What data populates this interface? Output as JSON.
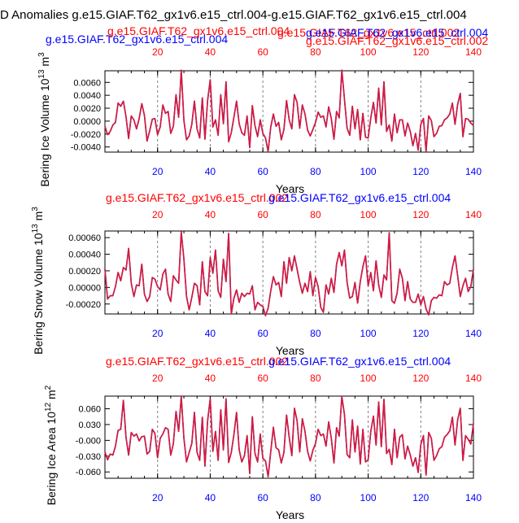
{
  "page": {
    "title": "D Anomalies g.e15.GIAF.T62_gx1v6.e15_ctrl.004-g.e15.GIAF.T62_gx1v6.e15_ctrl.004"
  },
  "colors": {
    "blue": "#0000ff",
    "red": "#ff0000",
    "line": "#d8183c",
    "axis": "#000000",
    "grid": "#808080"
  },
  "chart_data": [
    {
      "type": "line",
      "ylabel_main": "Bering Ice Volume 10",
      "ylabel_exp": "13",
      "ylabel_unit": "m",
      "ylabel_unit_exp": "3",
      "xlabel": "Years",
      "top_title_blue": "g.e15.GIAF.T62_gx1v6.e15_ctrl.004",
      "top_title_red": "g.e15.GIAF.T62_gx1v6.e15_ctrl.004",
      "top_title_red2": "g.e15.GIAF.T62_gx1v6.e15_ctrl.002",
      "top_title_blue2": "g.e15.GIAF.T62_gx1v6.e15_ctrl.004",
      "top_title_red3": "g.e15.GIAF.T62_gx1v6.e15_ctrl.002",
      "xlim": [
        0,
        140
      ],
      "ylim": [
        -0.0048,
        0.0078
      ],
      "yticks": [
        "0.0060",
        "0.0040",
        "0.0020",
        "0.0000",
        "-0.0020",
        "-0.0040"
      ],
      "ytick_values": [
        0.006,
        0.004,
        0.002,
        0.0,
        -0.002,
        -0.004
      ],
      "xticks": [
        "20",
        "40",
        "60",
        "80",
        "100",
        "120",
        "140"
      ],
      "xtick_values": [
        20,
        40,
        60,
        80,
        100,
        120,
        140
      ],
      "series": [
        {
          "name": "anomaly",
          "values": [
            -0.0008,
            -0.0021,
            -0.0016,
            -0.0006,
            -0.0002,
            0.0028,
            0.0023,
            0.0031,
            0.0007,
            -0.0027,
            0.0008,
            0.0002,
            -0.0012,
            0.0004,
            0.0027,
            0.0009,
            -0.0031,
            -0.0015,
            0.0003,
            0.0004,
            -0.0021,
            -0.0009,
            0.0025,
            0.0012,
            0.0015,
            -0.0019,
            -0.0008,
            0.0041,
            0.0006,
            0.0079,
            0.0001,
            -0.0029,
            -0.0023,
            -0.0005,
            0.0031,
            -0.0012,
            -0.0026,
            0.0036,
            -0.0028,
            0.0032,
            0.0064,
            -0.0009,
            0.0002,
            -0.0022,
            0.0041,
            -0.0004,
            0.0061,
            -0.0032,
            -0.0018,
            0.0006,
            0.0031,
            -0.0004,
            -0.0018,
            -0.0022,
            0.0008,
            -0.0041,
            0.0024,
            -0.0007,
            -0.0024,
            0.0002,
            -0.0019,
            -0.0026,
            -0.0047,
            -0.0009,
            0.0011,
            -0.0008,
            -0.0002,
            -0.0029,
            -0.0013,
            0.0032,
            0.0002,
            -0.0012,
            0.0041,
            0.0029,
            -0.0011,
            0.0025,
            0.0011,
            -0.0014,
            -0.0023,
            -0.0013,
            -0.0002,
            0.0014,
            0.0006,
            0.0008,
            -0.0009,
            0.0022,
            0.0004,
            -0.0028,
            0.0015,
            0.0005,
            0.0079,
            0.0034,
            -0.0011,
            -0.0022,
            0.0023,
            -0.0012,
            0.0018,
            -0.0029,
            0.0012,
            -0.0025,
            -0.0026,
            0.0005,
            0.0029,
            -0.0003,
            0.0051,
            -0.0006,
            0.0061,
            -0.0016,
            -0.0006,
            -0.0031,
            0.0011,
            -0.0018,
            0.0002,
            0.0002,
            -0.0023,
            -0.0003,
            -0.0016,
            -0.0038,
            -0.0019,
            -0.0045,
            -0.0005,
            0.0004,
            -0.0047,
            0.0008,
            0.0001,
            -0.0024,
            -0.0019,
            -0.0008,
            -0.0007,
            0.0002,
            0.0005,
            0.0011,
            0.0028,
            -0.0005,
            0.0026,
            0.0043,
            -0.0024,
            0.0004,
            0.0003,
            -0.0003,
            -0.0007
          ]
        }
      ]
    },
    {
      "type": "line",
      "ylabel_main": "Bering Snow Volume 10",
      "ylabel_exp": "13",
      "ylabel_unit": "m",
      "ylabel_unit_exp": "3",
      "xlabel": "Years",
      "top_title_red": "g.e15.GIAF.T62_gx1v6.e15_ctrl.002",
      "top_title_blue": "g.e15.GIAF.T62_gx1v6.e15_ctrl.004",
      "xlim": [
        0,
        140
      ],
      "ylim": [
        -0.00032,
        0.00068
      ],
      "yticks": [
        "0.00060",
        "0.00040",
        "0.00020",
        "0.00000",
        "-0.00020"
      ],
      "ytick_values": [
        0.0006,
        0.0004,
        0.0002,
        0.0,
        -0.0002
      ],
      "xticks": [
        "20",
        "40",
        "60",
        "80",
        "100",
        "120",
        "140"
      ],
      "xtick_values": [
        20,
        40,
        60,
        80,
        100,
        120,
        140
      ],
      "series": [
        {
          "name": "anomaly",
          "values": [
            0.00022,
            -0.00014,
            -0.0001,
            -0.0001,
            1e-05,
            0.00018,
            8e-05,
            0.00024,
            0.00021,
            0.00047,
            5e-05,
            -0.00011,
            3e-05,
            2e-05,
            0.00028,
            -8e-05,
            -0.00017,
            -0.00011,
            0.00012,
            0.0001,
            1e-05,
            -3e-05,
            0.00016,
            0.00022,
            -8e-05,
            -0.00017,
            0.00014,
            9e-05,
            5e-05,
            0.00067,
            0.00034,
            -0.00011,
            -0.00027,
            -0.00012,
            5e-05,
            2e-05,
            -0.00021,
            0.00031,
            -5e-05,
            -0.0001,
            0.00036,
            0.00017,
            0.00045,
            -4e-05,
            -0.00012,
            0.00034,
            7e-05,
            0.00065,
            -0.00032,
            -0.00013,
            -3e-05,
            -0.00018,
            -7e-05,
            -0.00011,
            -7e-05,
            -8e-05,
            2e-05,
            -0.00027,
            -0.00018,
            -0.00021,
            -0.00023,
            -0.00034,
            -0.00025,
            -4e-05,
            0.00013,
            3e-05,
            6e-05,
            -0.00011,
            0.00031,
            5e-05,
            0.00036,
            0.0002,
            0.00038,
            0.00022,
            6e-05,
            -7e-05,
            5e-05,
            -5e-05,
            0.00019,
            -0.0001,
            0.00012,
            1e-05,
            -0.00024,
            -0.0003,
            3e-05,
            -8e-05,
            0.00011,
            -6e-05,
            0.00028,
            0.00042,
            0.00026,
            0.00045,
            6e-05,
            -0.00013,
            -0.00011,
            6e-05,
            -0.00019,
            7e-05,
            0.00025,
            0.00038,
            2e-05,
            0.00018,
            -4e-05,
            0.00032,
            3e-05,
            -0.00012,
            0.00015,
            9e-05,
            0.00066,
            -0.00016,
            -0.00019,
            -7e-05,
            0.00022,
            0.00011,
            -0.00016,
            7e-05,
            -0.00014,
            -0.00018,
            -0.00018,
            -8e-05,
            -0.00021,
            -0.00011,
            -0.00026,
            -0.00033,
            -0.00016,
            -0.00012,
            -0.00013,
            -9e-05,
            -0.0001,
            7e-05,
            3e-05,
            5e-05,
            0.00024,
            0.00038,
            0.00014,
            -0.00011,
            2e-05,
            0.00011,
            -5e-05,
            1e-05,
            0.00022
          ]
        }
      ]
    },
    {
      "type": "line",
      "ylabel_main": "Bering Ice Area 10",
      "ylabel_exp": "12",
      "ylabel_unit": "m",
      "ylabel_unit_exp": "2",
      "xlabel": "Years",
      "top_title_red": "g.e15.GIAF.T62_gx1v6.e15_ctrl.002",
      "top_title_blue": "g.e15.GIAF.T62_gx1v6.e15_ctrl.004",
      "xlim": [
        0,
        140
      ],
      "ylim": [
        -0.072,
        0.084
      ],
      "yticks": [
        "0.060",
        "0.030",
        "-0.000",
        "-0.030",
        "-0.060"
      ],
      "ytick_values": [
        0.06,
        0.03,
        0.0,
        -0.03,
        -0.06
      ],
      "xticks": [
        "20",
        "40",
        "60",
        "80",
        "100",
        "120",
        "140"
      ],
      "xtick_values": [
        20,
        40,
        60,
        80,
        100,
        120,
        140
      ],
      "series": [
        {
          "name": "anomaly",
          "values": [
            -0.022,
            -0.037,
            -0.026,
            -0.028,
            -0.011,
            0.019,
            0.021,
            0.076,
            0.006,
            -0.028,
            0.015,
            0.008,
            0.012,
            -0.001,
            0.007,
            0.008,
            -0.026,
            -0.021,
            0.021,
            0.013,
            -0.033,
            0.004,
            0.012,
            0.024,
            0.021,
            -0.028,
            -0.006,
            0.055,
            0.017,
            0.083,
            0.004,
            -0.041,
            -0.023,
            -0.006,
            0.053,
            -0.023,
            -0.038,
            0.044,
            -0.049,
            0.037,
            0.079,
            -0.021,
            0.017,
            -0.038,
            0.058,
            -0.018,
            0.079,
            -0.042,
            -0.023,
            0.011,
            0.053,
            -0.018,
            -0.041,
            -0.029,
            0.009,
            -0.063,
            0.045,
            -0.025,
            -0.041,
            0.012,
            -0.034,
            -0.039,
            -0.069,
            -0.021,
            0.025,
            -0.014,
            -0.018,
            -0.043,
            -0.023,
            0.048,
            0.006,
            -0.029,
            0.061,
            0.037,
            -0.022,
            0.041,
            0.017,
            -0.021,
            -0.039,
            -0.019,
            -0.006,
            0.021,
            0.009,
            0.012,
            -0.011,
            0.035,
            0.004,
            -0.043,
            0.024,
            0.008,
            0.083,
            0.049,
            -0.027,
            -0.033,
            0.039,
            -0.022,
            0.027,
            -0.045,
            0.021,
            -0.041,
            -0.037,
            0.017,
            0.046,
            -0.009,
            0.073,
            -0.012,
            0.078,
            -0.025,
            -0.017,
            -0.046,
            0.021,
            -0.033,
            0.006,
            0.011,
            -0.035,
            -0.011,
            -0.028,
            -0.049,
            -0.033,
            -0.061,
            -0.008,
            0.009,
            -0.066,
            0.015,
            0.004,
            -0.038,
            -0.029,
            -0.016,
            -0.012,
            0.006,
            0.011,
            0.018,
            0.044,
            -0.009,
            0.039,
            0.061,
            -0.038,
            0.009,
            0.002,
            -0.007,
            0.032
          ]
        }
      ]
    }
  ]
}
